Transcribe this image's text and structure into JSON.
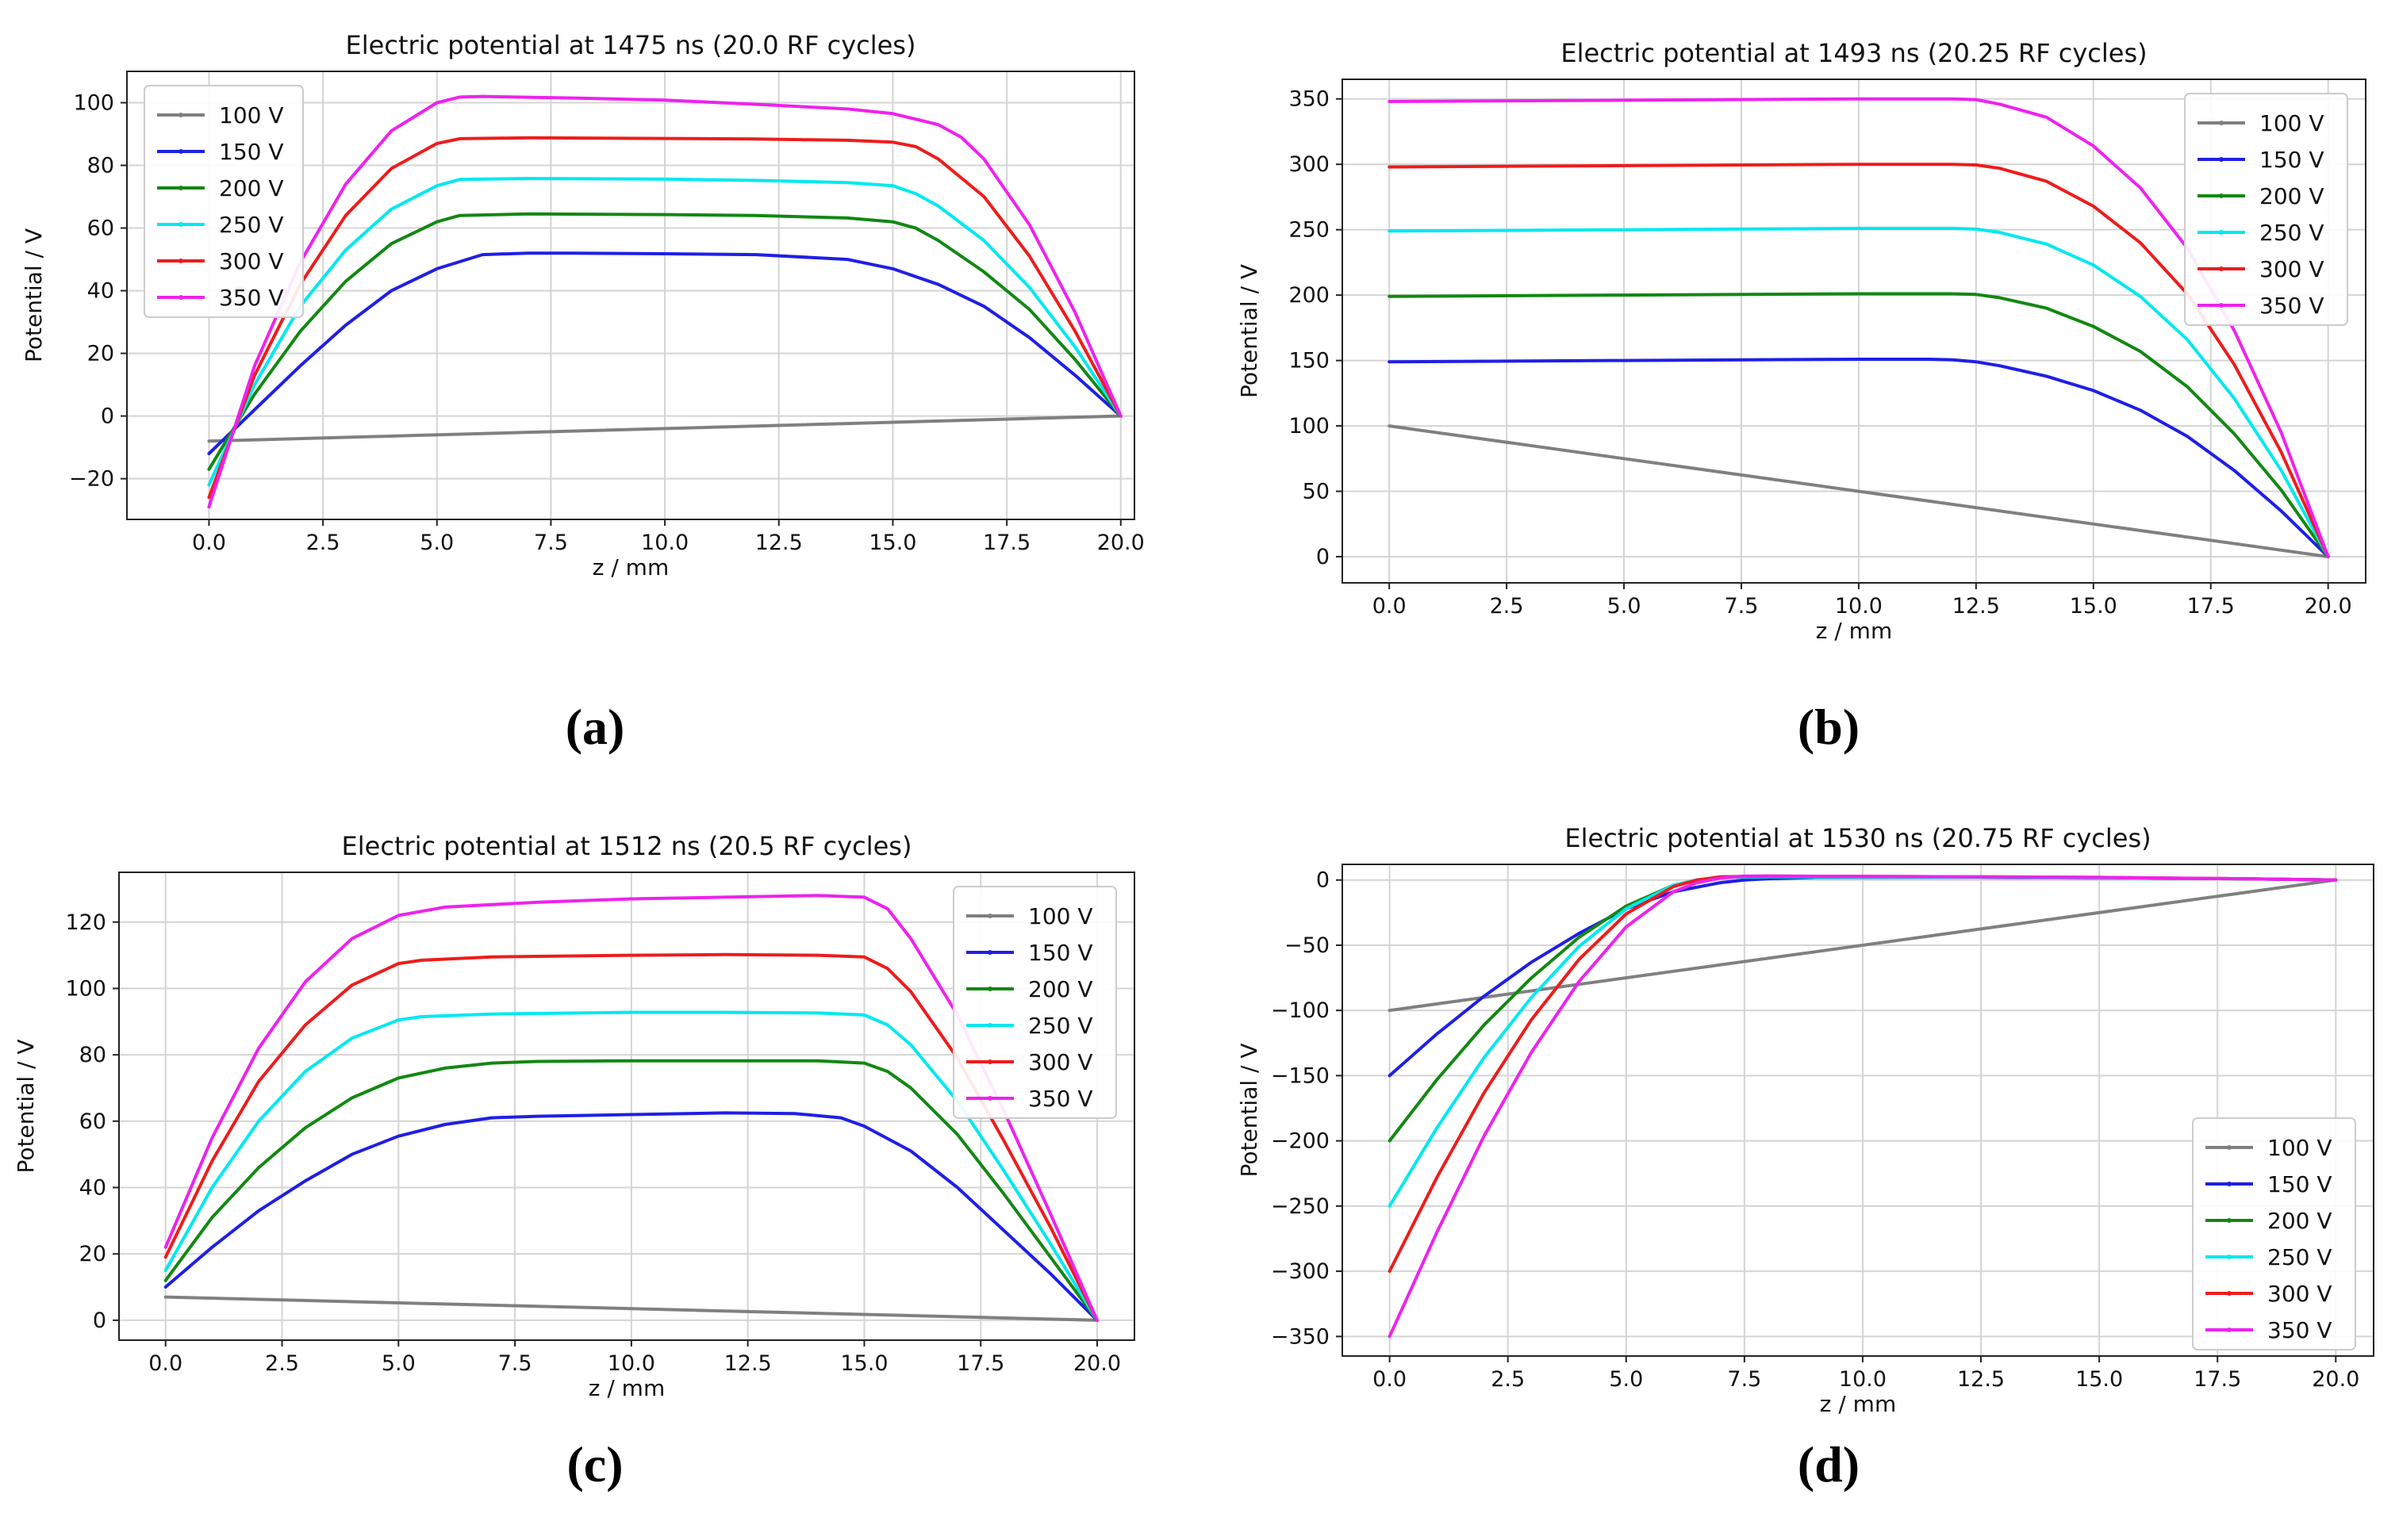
{
  "figure": {
    "captions": [
      "(a)",
      "(b)",
      "(c)",
      "(d)"
    ]
  },
  "chart_data": [
    {
      "id": "a",
      "type": "line",
      "title": "Electric potential at 1475 ns (20.0 RF cycles)",
      "xlabel": "z / mm",
      "ylabel": "Potential / V",
      "xlim": [
        -1.8,
        20.3
      ],
      "ylim": [
        -33,
        110
      ],
      "xticks": [
        0.0,
        2.5,
        5.0,
        7.5,
        10.0,
        12.5,
        15.0,
        17.5,
        20.0
      ],
      "xtick_labels": [
        "0.0",
        "2.5",
        "5.0",
        "7.5",
        "10.0",
        "12.5",
        "15.0",
        "17.5",
        "20.0"
      ],
      "yticks": [
        -20,
        0,
        20,
        40,
        60,
        80,
        100
      ],
      "ytick_labels": [
        "−20",
        "0",
        "20",
        "40",
        "60",
        "80",
        "100"
      ],
      "legend_position": "top-left",
      "grid": true,
      "series": [
        {
          "name": "100 V",
          "color": "#808080",
          "x": [
            0,
            20
          ],
          "y": [
            -8,
            0
          ]
        },
        {
          "name": "150 V",
          "color": "#1f1fe6",
          "x": [
            0,
            1,
            2,
            3,
            4,
            5,
            6,
            7,
            8,
            10,
            12,
            14,
            15,
            16,
            17,
            18,
            19,
            20
          ],
          "y": [
            -12,
            2,
            16,
            29,
            40,
            47,
            51.5,
            52,
            52,
            51.8,
            51.5,
            50,
            47,
            42,
            35,
            25,
            13,
            0
          ]
        },
        {
          "name": "200 V",
          "color": "#128812",
          "x": [
            0,
            1,
            2,
            3,
            4,
            5,
            5.5,
            7,
            10,
            12,
            14,
            15,
            15.5,
            16,
            17,
            18,
            19,
            20
          ],
          "y": [
            -17,
            7,
            27,
            43,
            55,
            62,
            64,
            64.5,
            64.3,
            64,
            63.2,
            62,
            60,
            56,
            46,
            34,
            18,
            0
          ]
        },
        {
          "name": "250 V",
          "color": "#00e8f0",
          "x": [
            0,
            1,
            2,
            3,
            4,
            5,
            5.5,
            7,
            10,
            12,
            14,
            15,
            15.5,
            16,
            17,
            18,
            19,
            20
          ],
          "y": [
            -22,
            10,
            35,
            53,
            66,
            73.5,
            75.5,
            75.8,
            75.6,
            75.2,
            74.5,
            73.5,
            71,
            67,
            56,
            41,
            22,
            0
          ]
        },
        {
          "name": "300 V",
          "color": "#ee1c1c",
          "x": [
            0,
            1,
            2,
            3,
            4,
            5,
            5.5,
            7,
            10,
            12,
            14,
            15,
            15.5,
            16,
            17,
            18,
            19,
            20
          ],
          "y": [
            -26,
            13,
            42,
            64,
            79,
            87,
            88.5,
            88.8,
            88.6,
            88.4,
            88,
            87.4,
            86,
            82,
            70,
            51,
            27,
            0
          ]
        },
        {
          "name": "350 V",
          "color": "#ee22ee",
          "x": [
            0,
            1,
            2,
            3,
            4,
            5,
            5.5,
            6,
            8,
            10,
            12,
            14,
            15,
            16,
            16.5,
            17,
            18,
            19,
            20
          ],
          "y": [
            -29,
            16,
            49,
            74,
            91,
            100,
            101.8,
            102,
            101.5,
            100.8,
            99.5,
            98,
            96.5,
            93,
            89,
            82,
            61,
            33,
            0
          ]
        }
      ]
    },
    {
      "id": "b",
      "type": "line",
      "title": "Electric potential at 1493 ns (20.25 RF cycles)",
      "xlabel": "z / mm",
      "ylabel": "Potential / V",
      "xlim": [
        -1.0,
        20.8
      ],
      "ylim": [
        -20,
        365
      ],
      "xticks": [
        0.0,
        2.5,
        5.0,
        7.5,
        10.0,
        12.5,
        15.0,
        17.5,
        20.0
      ],
      "xtick_labels": [
        "0.0",
        "2.5",
        "5.0",
        "7.5",
        "10.0",
        "12.5",
        "15.0",
        "17.5",
        "20.0"
      ],
      "yticks": [
        0,
        50,
        100,
        150,
        200,
        250,
        300,
        350
      ],
      "ytick_labels": [
        "0",
        "50",
        "100",
        "150",
        "200",
        "250",
        "300",
        "350"
      ],
      "legend_position": "top-right",
      "grid": true,
      "series": [
        {
          "name": "100 V",
          "color": "#808080",
          "x": [
            0,
            20
          ],
          "y": [
            100,
            0
          ]
        },
        {
          "name": "150 V",
          "color": "#1f1fe6",
          "x": [
            0,
            5,
            10,
            11.5,
            12,
            12.5,
            13,
            14,
            15,
            16,
            17,
            18,
            19,
            20
          ],
          "y": [
            149,
            150,
            151,
            151,
            150.5,
            149,
            146,
            138,
            127,
            112,
            92,
            66,
            35,
            0
          ]
        },
        {
          "name": "200 V",
          "color": "#128812",
          "x": [
            0,
            5,
            10,
            12,
            12.5,
            13,
            14,
            15,
            16,
            17,
            18,
            19,
            20
          ],
          "y": [
            199,
            200,
            201,
            201,
            200.5,
            198,
            190,
            176,
            157,
            130,
            94,
            51,
            0
          ]
        },
        {
          "name": "250 V",
          "color": "#00e8f0",
          "x": [
            0,
            5,
            10,
            12,
            12.5,
            13,
            14,
            15,
            16,
            17,
            18,
            19,
            20
          ],
          "y": [
            249,
            250,
            251,
            251,
            250.5,
            248,
            239,
            223,
            199,
            166,
            121,
            66,
            0
          ]
        },
        {
          "name": "300 V",
          "color": "#ee1c1c",
          "x": [
            0,
            5,
            10,
            12,
            12.5,
            13,
            14,
            15,
            16,
            17,
            18,
            19,
            20
          ],
          "y": [
            298,
            299,
            300,
            300,
            299.5,
            297,
            287,
            268,
            240,
            201,
            147,
            80,
            0
          ]
        },
        {
          "name": "350 V",
          "color": "#ee22ee",
          "x": [
            0,
            5,
            10,
            12,
            12.5,
            13,
            14,
            15,
            16,
            17,
            18,
            19,
            20
          ],
          "y": [
            348,
            349,
            350,
            350,
            349.5,
            346,
            336,
            314,
            282,
            236,
            173,
            95,
            0
          ]
        }
      ]
    },
    {
      "id": "c",
      "type": "line",
      "title": "Electric potential at 1512 ns (20.5 RF cycles)",
      "xlabel": "z / mm",
      "ylabel": "Potential / V",
      "xlim": [
        -1.0,
        20.8
      ],
      "ylim": [
        -6,
        135
      ],
      "xticks": [
        0.0,
        2.5,
        5.0,
        7.5,
        10.0,
        12.5,
        15.0,
        17.5,
        20.0
      ],
      "xtick_labels": [
        "0.0",
        "2.5",
        "5.0",
        "7.5",
        "10.0",
        "12.5",
        "15.0",
        "17.5",
        "20.0"
      ],
      "yticks": [
        0,
        20,
        40,
        60,
        80,
        100,
        120
      ],
      "ytick_labels": [
        "0",
        "20",
        "40",
        "60",
        "80",
        "100",
        "120"
      ],
      "legend_position": "top-right",
      "grid": true,
      "series": [
        {
          "name": "100 V",
          "color": "#808080",
          "x": [
            0,
            20
          ],
          "y": [
            7,
            0
          ]
        },
        {
          "name": "150 V",
          "color": "#1f1fe6",
          "x": [
            0,
            1,
            2,
            3,
            4,
            5,
            6,
            7,
            8,
            10,
            12,
            13.5,
            14.5,
            15,
            16,
            17,
            18,
            19,
            20
          ],
          "y": [
            10,
            22,
            33,
            42,
            50,
            55.5,
            59,
            61,
            61.5,
            62,
            62.5,
            62.3,
            61,
            58.5,
            51,
            40,
            27,
            14,
            0
          ]
        },
        {
          "name": "200 V",
          "color": "#128812",
          "x": [
            0,
            1,
            2,
            3,
            4,
            5,
            6,
            7,
            8,
            10,
            12,
            14,
            15,
            15.5,
            16,
            17,
            18,
            19,
            20
          ],
          "y": [
            12,
            31,
            46,
            58,
            67,
            73,
            76,
            77.5,
            78,
            78.2,
            78.2,
            78.2,
            77.5,
            75,
            70,
            56,
            38,
            19,
            0
          ]
        },
        {
          "name": "250 V",
          "color": "#00e8f0",
          "x": [
            0,
            1,
            2,
            3,
            4,
            5,
            5.5,
            7,
            10,
            12,
            14,
            15,
            15.5,
            16,
            17,
            18,
            19,
            20
          ],
          "y": [
            15,
            40,
            60,
            75,
            85,
            90.5,
            91.5,
            92.3,
            92.8,
            92.8,
            92.6,
            92,
            89,
            83,
            66,
            45,
            23,
            0
          ]
        },
        {
          "name": "300 V",
          "color": "#ee1c1c",
          "x": [
            0,
            1,
            2,
            3,
            4,
            5,
            5.5,
            7,
            10,
            12,
            14,
            15,
            15.5,
            16,
            17,
            18,
            19,
            20
          ],
          "y": [
            19,
            48,
            72,
            89,
            101,
            107.5,
            108.5,
            109.5,
            110,
            110.2,
            110,
            109.5,
            106,
            99,
            79,
            54,
            28,
            0
          ]
        },
        {
          "name": "350 V",
          "color": "#ee22ee",
          "x": [
            0,
            1,
            2,
            3,
            4,
            5,
            6,
            8,
            10,
            12,
            14,
            15,
            15.5,
            16,
            17,
            18,
            19,
            20
          ],
          "y": [
            22,
            55,
            82,
            102,
            115,
            122,
            124.5,
            126,
            127,
            127.5,
            128,
            127.5,
            124,
            115,
            92,
            63,
            32,
            0
          ]
        }
      ]
    },
    {
      "id": "d",
      "type": "line",
      "title": "Electric potential at 1530 ns (20.75 RF cycles)",
      "xlabel": "z / mm",
      "ylabel": "Potential / V",
      "xlim": [
        -1.0,
        20.8
      ],
      "ylim": [
        -365,
        12
      ],
      "xticks": [
        0.0,
        2.5,
        5.0,
        7.5,
        10.0,
        12.5,
        15.0,
        17.5,
        20.0
      ],
      "xtick_labels": [
        "0.0",
        "2.5",
        "5.0",
        "7.5",
        "10.0",
        "12.5",
        "15.0",
        "17.5",
        "20.0"
      ],
      "yticks": [
        -350,
        -300,
        -250,
        -200,
        -150,
        -100,
        -50,
        0
      ],
      "ytick_labels": [
        "−350",
        "−300",
        "−250",
        "−200",
        "−150",
        "−100",
        "−50",
        "0"
      ],
      "legend_position": "bottom-right",
      "grid": true,
      "series": [
        {
          "name": "100 V",
          "color": "#808080",
          "x": [
            0,
            20
          ],
          "y": [
            -100,
            0
          ]
        },
        {
          "name": "150 V",
          "color": "#1f1fe6",
          "x": [
            0,
            1,
            2,
            3,
            4,
            5,
            6,
            7,
            7.5,
            8,
            9,
            12,
            15,
            18,
            20
          ],
          "y": [
            -150,
            -118,
            -89,
            -63,
            -41,
            -22,
            -9,
            -2,
            0,
            1,
            2,
            2,
            1.5,
            1,
            0
          ]
        },
        {
          "name": "200 V",
          "color": "#128812",
          "x": [
            0,
            1,
            2,
            3,
            4,
            5,
            6,
            6.5,
            7,
            8,
            12,
            15,
            18,
            20
          ],
          "y": [
            -200,
            -153,
            -111,
            -75,
            -44,
            -20,
            -4,
            0,
            2,
            2.5,
            2,
            1.5,
            1,
            0
          ]
        },
        {
          "name": "250 V",
          "color": "#00e8f0",
          "x": [
            0,
            1,
            2,
            3,
            4,
            5,
            6,
            6.5,
            7,
            8,
            12,
            15,
            18,
            20
          ],
          "y": [
            -250,
            -190,
            -136,
            -90,
            -51,
            -22,
            -4,
            0,
            2,
            2.5,
            2,
            1.5,
            1,
            0
          ]
        },
        {
          "name": "300 V",
          "color": "#ee1c1c",
          "x": [
            0,
            1,
            2,
            3,
            4,
            5,
            6,
            6.5,
            7,
            8,
            12,
            15,
            18,
            20
          ],
          "y": [
            -300,
            -228,
            -163,
            -107,
            -61,
            -26,
            -5,
            0,
            2.5,
            3,
            2.5,
            2,
            1,
            0
          ]
        },
        {
          "name": "350 V",
          "color": "#ee22ee",
          "x": [
            0,
            1,
            2,
            3,
            4,
            5,
            6,
            6.5,
            7,
            7.5,
            8,
            12,
            15,
            18,
            20
          ],
          "y": [
            -350,
            -270,
            -196,
            -132,
            -78,
            -36,
            -9,
            -2,
            1.5,
            3,
            3,
            2.5,
            2,
            1,
            0
          ]
        }
      ]
    }
  ]
}
